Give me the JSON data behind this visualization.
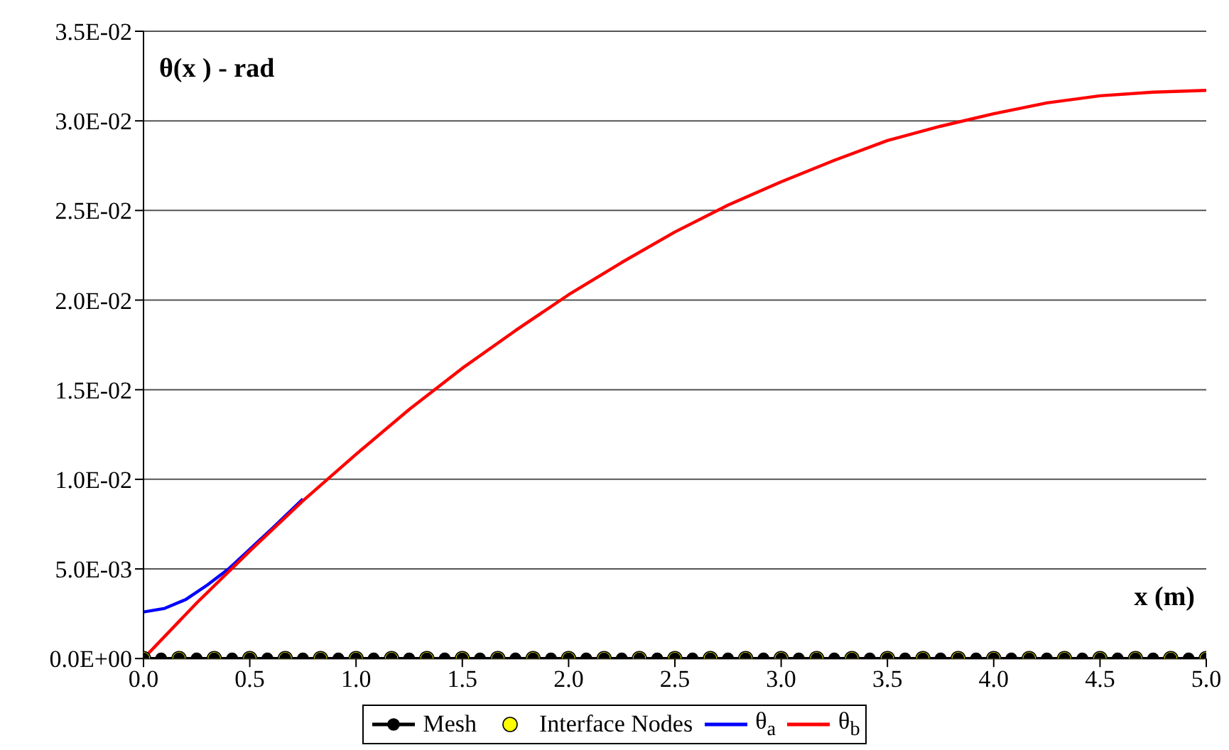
{
  "chart_data": {
    "type": "line",
    "xlabel": "x (m)",
    "ylabel": "θ(x ) - rad",
    "xlim": [
      0,
      5
    ],
    "ylim": [
      0,
      0.035
    ],
    "xticks": [
      {
        "value": 0,
        "label": "0.0"
      },
      {
        "value": 0.5,
        "label": "0.5"
      },
      {
        "value": 1,
        "label": "1.0"
      },
      {
        "value": 1.5,
        "label": "1.5"
      },
      {
        "value": 2,
        "label": "2.0"
      },
      {
        "value": 2.5,
        "label": "2.5"
      },
      {
        "value": 3,
        "label": "3.0"
      },
      {
        "value": 3.5,
        "label": "3.5"
      },
      {
        "value": 4,
        "label": "4.0"
      },
      {
        "value": 4.5,
        "label": "4.5"
      },
      {
        "value": 5,
        "label": "5.0"
      }
    ],
    "yticks": [
      {
        "value": 0,
        "label": "0.0E+00"
      },
      {
        "value": 0.005,
        "label": "5.0E-03"
      },
      {
        "value": 0.01,
        "label": "1.0E-02"
      },
      {
        "value": 0.015,
        "label": "1.5E-02"
      },
      {
        "value": 0.02,
        "label": "2.0E-02"
      },
      {
        "value": 0.025,
        "label": "2.5E-02"
      },
      {
        "value": 0.03,
        "label": "3.0E-02"
      },
      {
        "value": 0.035,
        "label": "3.5E-02"
      }
    ],
    "grid": "y",
    "legend": "bottom",
    "series": [
      {
        "name": "Mesh",
        "color": "#000000",
        "marker": "circle",
        "x": [
          0,
          0.083,
          0.167,
          0.25,
          0.333,
          0.417,
          0.5,
          0.583,
          0.667,
          0.75,
          0.833,
          0.917,
          1,
          1.083,
          1.167,
          1.25,
          1.333,
          1.417,
          1.5,
          1.583,
          1.667,
          1.75,
          1.833,
          1.917,
          2,
          2.083,
          2.167,
          2.25,
          2.333,
          2.417,
          2.5,
          2.583,
          2.667,
          2.75,
          2.833,
          2.917,
          3,
          3.083,
          3.167,
          3.25,
          3.333,
          3.417,
          3.5,
          3.583,
          3.667,
          3.75,
          3.833,
          3.917,
          4,
          4.083,
          4.167,
          4.25,
          4.333,
          4.417,
          4.5,
          4.583,
          4.667,
          4.75,
          4.833,
          4.917,
          5
        ],
        "values": [
          0,
          0,
          0,
          0,
          0,
          0,
          0,
          0,
          0,
          0,
          0,
          0,
          0,
          0,
          0,
          0,
          0,
          0,
          0,
          0,
          0,
          0,
          0,
          0,
          0,
          0,
          0,
          0,
          0,
          0,
          0,
          0,
          0,
          0,
          0,
          0,
          0,
          0,
          0,
          0,
          0,
          0,
          0,
          0,
          0,
          0,
          0,
          0,
          0,
          0,
          0,
          0,
          0,
          0,
          0,
          0,
          0,
          0,
          0,
          0,
          0
        ]
      },
      {
        "name": "Interface Nodes",
        "type": "scatter",
        "color": "#ffff00",
        "marker": "circle",
        "x": [
          0,
          0.167,
          0.333,
          0.5,
          0.667,
          0.833,
          1,
          1.167,
          1.333,
          1.5,
          1.667,
          1.833,
          2,
          2.167,
          2.333,
          2.5,
          2.667,
          2.833,
          3,
          3.167,
          3.333,
          3.5,
          3.667,
          3.833,
          4,
          4.167,
          4.333,
          4.5,
          4.667,
          4.833,
          5
        ],
        "values": [
          0,
          0,
          0,
          0,
          0,
          0,
          0,
          0,
          0,
          0,
          0,
          0,
          0,
          0,
          0,
          0,
          0,
          0,
          0,
          0,
          0,
          0,
          0,
          0,
          0,
          0,
          0,
          0,
          0,
          0,
          0
        ]
      },
      {
        "name": "θ$_{a}$",
        "color": "#0000ff",
        "marker": "none",
        "x": [
          0,
          0.1,
          0.2,
          0.3,
          0.4,
          0.5,
          0.6,
          0.75
        ],
        "values": [
          0.0026,
          0.0028,
          0.0033,
          0.0041,
          0.005,
          0.0061,
          0.0072,
          0.0089
        ]
      },
      {
        "name": "θ$_{b}$",
        "color": "#ff0000",
        "marker": "none",
        "x": [
          0,
          0.25,
          0.5,
          0.75,
          1,
          1.25,
          1.5,
          1.75,
          2,
          2.25,
          2.5,
          2.75,
          3,
          3.25,
          3.5,
          3.75,
          4,
          4.25,
          4.5,
          4.75,
          5
        ],
        "values": [
          0,
          0.0031,
          0.006,
          0.0088,
          0.0114,
          0.0139,
          0.0162,
          0.0183,
          0.0203,
          0.0221,
          0.0238,
          0.0253,
          0.0266,
          0.0278,
          0.0289,
          0.0297,
          0.0304,
          0.031,
          0.0314,
          0.0316,
          0.0317
        ]
      }
    ]
  }
}
